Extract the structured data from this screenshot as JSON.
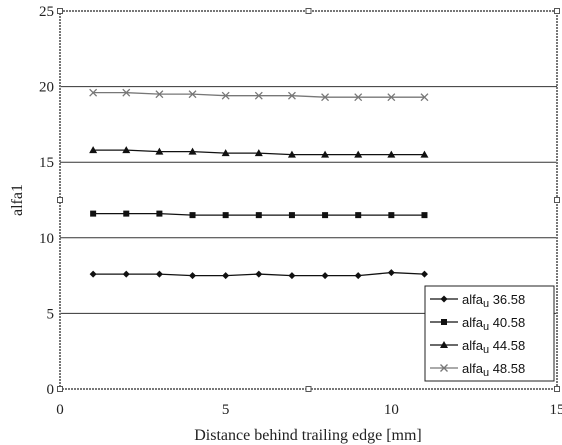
{
  "chart_data": {
    "type": "line",
    "xlabel": "Distance behind trailing edge [mm]",
    "ylabel": "alfa1",
    "xlim": [
      0,
      15
    ],
    "ylim": [
      0,
      25
    ],
    "xticks": [
      0,
      5,
      10,
      15
    ],
    "yticks": [
      0,
      5,
      10,
      15,
      20,
      25
    ],
    "grid": "horizontal",
    "legend_position": "bottom-right",
    "x": [
      1,
      2,
      3,
      4,
      5,
      6,
      7,
      8,
      9,
      10,
      11
    ],
    "series": [
      {
        "name": "alfa",
        "subscript": "u",
        "suffix": " 36.58",
        "marker": "diamond",
        "values": [
          7.6,
          7.6,
          7.6,
          7.5,
          7.5,
          7.6,
          7.5,
          7.5,
          7.5,
          7.7,
          7.6
        ]
      },
      {
        "name": "alfa",
        "subscript": "u",
        "suffix": " 40.58",
        "marker": "square",
        "values": [
          11.6,
          11.6,
          11.6,
          11.5,
          11.5,
          11.5,
          11.5,
          11.5,
          11.5,
          11.5,
          11.5
        ]
      },
      {
        "name": "alfa",
        "subscript": "u",
        "suffix": " 44.58",
        "marker": "triangle",
        "values": [
          15.8,
          15.8,
          15.7,
          15.7,
          15.6,
          15.6,
          15.5,
          15.5,
          15.5,
          15.5,
          15.5
        ]
      },
      {
        "name": "alfa",
        "subscript": "u",
        "suffix": " 48.58",
        "marker": "x",
        "values": [
          19.6,
          19.6,
          19.5,
          19.5,
          19.4,
          19.4,
          19.4,
          19.3,
          19.3,
          19.3,
          19.3
        ]
      }
    ]
  }
}
